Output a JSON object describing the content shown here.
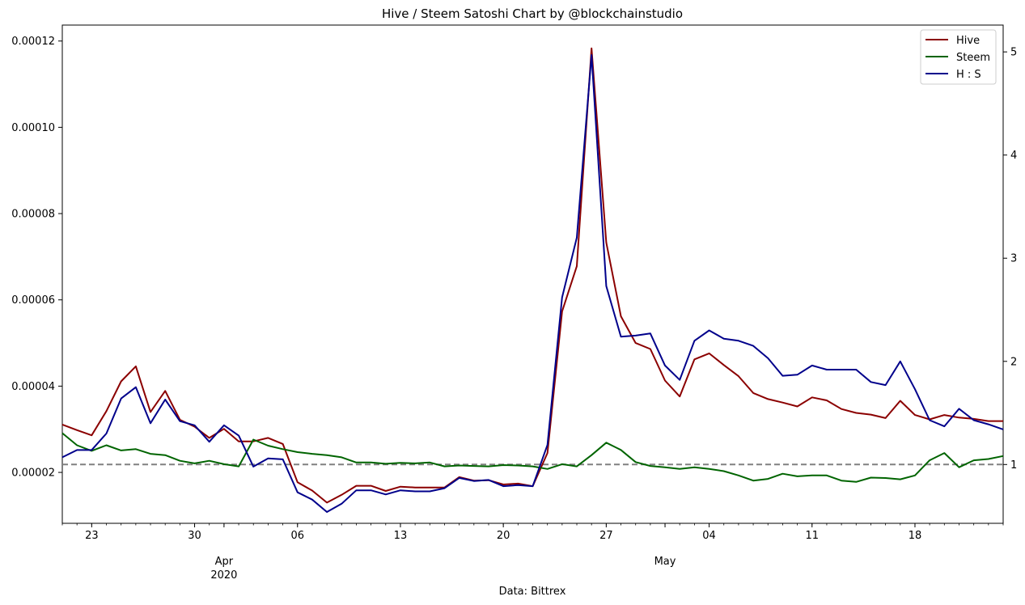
{
  "chart_data": {
    "type": "line",
    "title": "Hive / Steem Satoshi Chart by @blockchainstudio",
    "xlabel": "Data: Bittrex",
    "x_start": "2020-03-21",
    "x": [
      "2020-03-21",
      "2020-03-22",
      "2020-03-23",
      "2020-03-24",
      "2020-03-25",
      "2020-03-26",
      "2020-03-27",
      "2020-03-28",
      "2020-03-29",
      "2020-03-30",
      "2020-03-31",
      "2020-04-01",
      "2020-04-02",
      "2020-04-03",
      "2020-04-04",
      "2020-04-05",
      "2020-04-06",
      "2020-04-07",
      "2020-04-08",
      "2020-04-09",
      "2020-04-10",
      "2020-04-11",
      "2020-04-12",
      "2020-04-13",
      "2020-04-14",
      "2020-04-15",
      "2020-04-16",
      "2020-04-17",
      "2020-04-18",
      "2020-04-19",
      "2020-04-20",
      "2020-04-21",
      "2020-04-22",
      "2020-04-23",
      "2020-04-24",
      "2020-04-25",
      "2020-04-26",
      "2020-04-27",
      "2020-04-28",
      "2020-04-29",
      "2020-04-30",
      "2020-05-01",
      "2020-05-02",
      "2020-05-03",
      "2020-05-04",
      "2020-05-05",
      "2020-05-06",
      "2020-05-07",
      "2020-05-08",
      "2020-05-09",
      "2020-05-10",
      "2020-05-11",
      "2020-05-12",
      "2020-05-13",
      "2020-05-14",
      "2020-05-15",
      "2020-05-16",
      "2020-05-17",
      "2020-05-18",
      "2020-05-19",
      "2020-05-20",
      "2020-05-21",
      "2020-05-22",
      "2020-05-23",
      "2020-05-24"
    ],
    "x_range": [
      "2020-03-21",
      "2020-05-24"
    ],
    "x_ticks": [
      {
        "date": "2020-03-23",
        "label": "23"
      },
      {
        "date": "2020-03-30",
        "label": "30"
      },
      {
        "date": "2020-04-06",
        "label": "06"
      },
      {
        "date": "2020-04-13",
        "label": "13"
      },
      {
        "date": "2020-04-20",
        "label": "20"
      },
      {
        "date": "2020-04-27",
        "label": "27"
      },
      {
        "date": "2020-05-04",
        "label": "04"
      },
      {
        "date": "2020-05-11",
        "label": "11"
      },
      {
        "date": "2020-05-18",
        "label": "18"
      }
    ],
    "x_month_labels": [
      {
        "date": "2020-04-01",
        "label": "Apr",
        "sublabel": "2020"
      },
      {
        "date": "2020-05-01",
        "label": "May",
        "sublabel": ""
      }
    ],
    "y_left": {
      "range": [
        8.2e-06,
        0.0001237
      ],
      "ticks": [
        "0.00002",
        "0.00004",
        "0.00006",
        "0.00008",
        "0.00010",
        "0.00012"
      ]
    },
    "y_right": {
      "range": [
        0.43,
        5.26
      ],
      "ticks": [
        "1",
        "2",
        "3",
        "4",
        "5"
      ]
    },
    "reference_line": {
      "axis": "right",
      "value": 1,
      "style": "dashed",
      "color": "#808080"
    },
    "legend_position": "top-right",
    "series": [
      {
        "name": "Hive",
        "axis": "left",
        "color": "#8b0000",
        "values": [
          3.11e-05,
          2.98e-05,
          2.86e-05,
          3.42e-05,
          4.11e-05,
          4.46e-05,
          3.4e-05,
          3.89e-05,
          3.22e-05,
          3.06e-05,
          2.8e-05,
          3.01e-05,
          2.72e-05,
          2.72e-05,
          2.8e-05,
          2.66e-05,
          1.77e-05,
          1.58e-05,
          1.3e-05,
          1.48e-05,
          1.69e-05,
          1.69e-05,
          1.57e-05,
          1.67e-05,
          1.65e-05,
          1.65e-05,
          1.65e-05,
          1.89e-05,
          1.81e-05,
          1.82e-05,
          1.72e-05,
          1.74e-05,
          1.68e-05,
          2.45e-05,
          5.73e-05,
          6.78e-05,
          0.0001183,
          7.33e-05,
          5.62e-05,
          5e-05,
          4.86e-05,
          4.13e-05,
          3.76e-05,
          4.62e-05,
          4.76e-05,
          4.49e-05,
          4.23e-05,
          3.84e-05,
          3.7e-05,
          3.62e-05,
          3.53e-05,
          3.74e-05,
          3.67e-05,
          3.47e-05,
          3.38e-05,
          3.34e-05,
          3.26e-05,
          3.66e-05,
          3.33e-05,
          3.23e-05,
          3.33e-05,
          3.27e-05,
          3.24e-05,
          3.19e-05,
          3.19e-05
        ]
      },
      {
        "name": "Steem",
        "axis": "left",
        "color": "#006400",
        "values": [
          2.91e-05,
          2.63e-05,
          2.5e-05,
          2.63e-05,
          2.51e-05,
          2.54e-05,
          2.43e-05,
          2.4e-05,
          2.27e-05,
          2.21e-05,
          2.27e-05,
          2.19e-05,
          2.14e-05,
          2.76e-05,
          2.62e-05,
          2.54e-05,
          2.47e-05,
          2.43e-05,
          2.4e-05,
          2.35e-05,
          2.23e-05,
          2.23e-05,
          2.2e-05,
          2.22e-05,
          2.21e-05,
          2.23e-05,
          2.14e-05,
          2.16e-05,
          2.15e-05,
          2.14e-05,
          2.17e-05,
          2.16e-05,
          2.14e-05,
          2.08e-05,
          2.19e-05,
          2.14e-05,
          2.4e-05,
          2.69e-05,
          2.52e-05,
          2.24e-05,
          2.15e-05,
          2.12e-05,
          2.08e-05,
          2.12e-05,
          2.08e-05,
          2.03e-05,
          1.93e-05,
          1.81e-05,
          1.85e-05,
          1.97e-05,
          1.91e-05,
          1.93e-05,
          1.93e-05,
          1.81e-05,
          1.78e-05,
          1.88e-05,
          1.87e-05,
          1.84e-05,
          1.93e-05,
          2.28e-05,
          2.45e-05,
          2.12e-05,
          2.28e-05,
          2.31e-05,
          2.38e-05
        ]
      },
      {
        "name": "H : S",
        "axis": "right",
        "color": "#00008b",
        "values": [
          1.07,
          1.14,
          1.14,
          1.3,
          1.64,
          1.75,
          1.4,
          1.63,
          1.42,
          1.38,
          1.22,
          1.38,
          1.28,
          0.98,
          1.06,
          1.05,
          0.73,
          0.66,
          0.54,
          0.62,
          0.75,
          0.75,
          0.71,
          0.75,
          0.74,
          0.74,
          0.77,
          0.87,
          0.84,
          0.85,
          0.79,
          0.8,
          0.79,
          1.19,
          2.62,
          3.2,
          4.97,
          2.73,
          2.24,
          2.25,
          2.27,
          1.96,
          1.82,
          2.2,
          2.3,
          2.22,
          2.2,
          2.15,
          2.03,
          1.86,
          1.87,
          1.96,
          1.92,
          1.92,
          1.92,
          1.8,
          1.77,
          2.0,
          1.73,
          1.43,
          1.37,
          1.54,
          1.43,
          1.39,
          1.34
        ]
      }
    ]
  }
}
